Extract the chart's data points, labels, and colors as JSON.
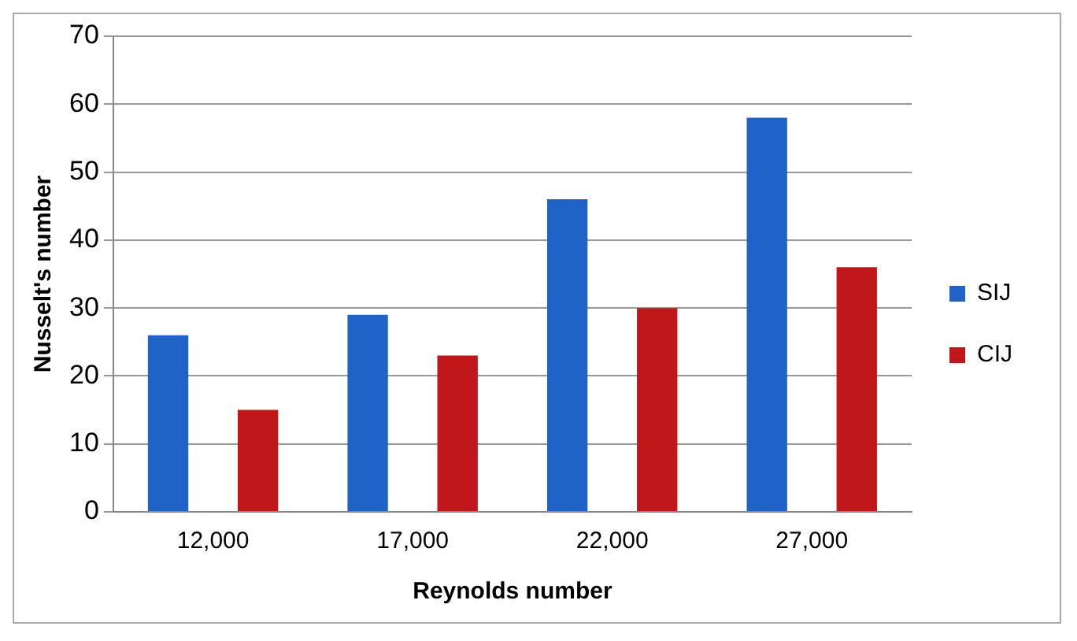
{
  "chart_data": {
    "type": "bar",
    "xlabel": "Reynolds number",
    "ylabel": "Nusselt's number",
    "categories": [
      "12,000",
      "17,000",
      "22,000",
      "27,000"
    ],
    "series": [
      {
        "name": "SIJ",
        "color": "#1f62c8",
        "values": [
          26,
          29,
          46,
          58
        ]
      },
      {
        "name": "CIJ",
        "color": "#c0181a",
        "values": [
          15,
          23,
          30,
          36
        ]
      }
    ],
    "ylim": [
      0,
      70
    ],
    "yticks": [
      0,
      10,
      20,
      30,
      40,
      50,
      60,
      70
    ],
    "grid": "y",
    "legend": "right"
  }
}
